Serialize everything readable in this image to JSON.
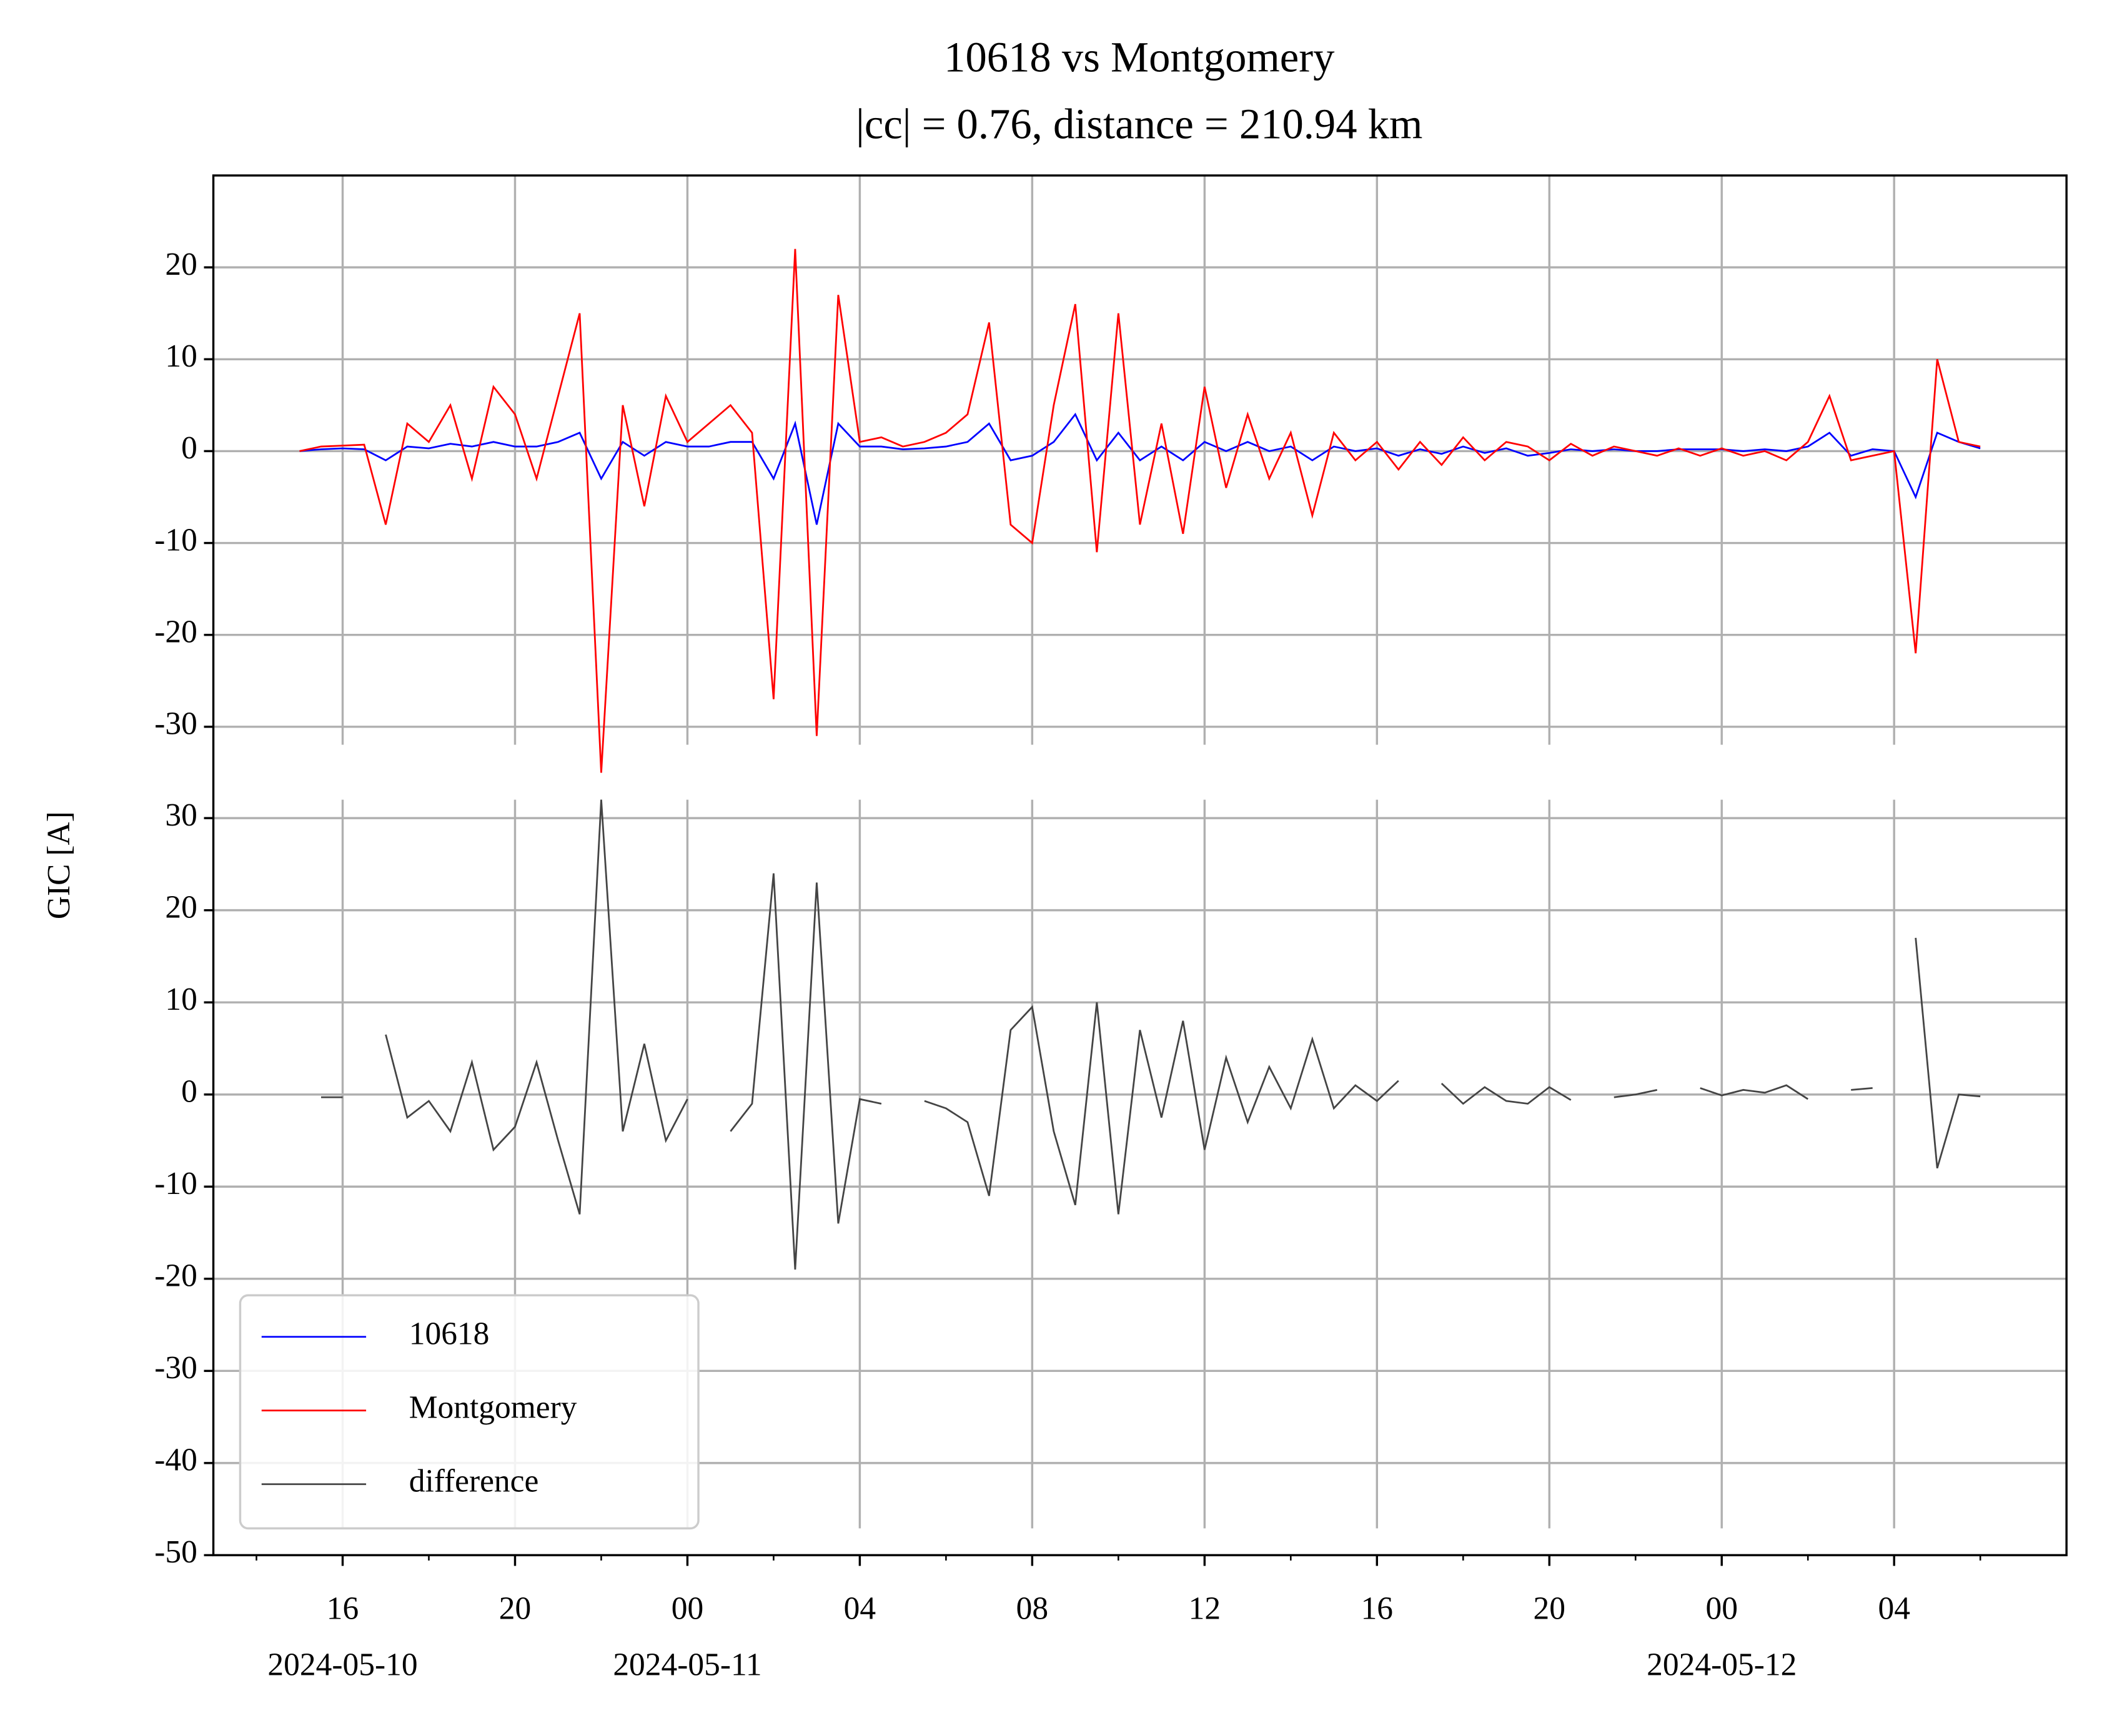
{
  "chart_data": [
    {
      "type": "line",
      "title": "10618 vs Montgomery",
      "subtitle": "|cc| = 0.76, distance = 210.94 km",
      "x": [
        "2024-05-10 15:00",
        "2024-05-10 15:30",
        "2024-05-10 16:00",
        "2024-05-10 16:30",
        "2024-05-10 17:00",
        "2024-05-10 17:30",
        "2024-05-10 18:00",
        "2024-05-10 18:30",
        "2024-05-10 19:00",
        "2024-05-10 19:30",
        "2024-05-10 20:00",
        "2024-05-10 20:30",
        "2024-05-10 21:00",
        "2024-05-10 21:30",
        "2024-05-10 22:00",
        "2024-05-10 22:30",
        "2024-05-10 23:00",
        "2024-05-10 23:30",
        "2024-05-11 00:00",
        "2024-05-11 00:30",
        "2024-05-11 01:00",
        "2024-05-11 01:30",
        "2024-05-11 02:00",
        "2024-05-11 02:30",
        "2024-05-11 03:00",
        "2024-05-11 03:30",
        "2024-05-11 04:00",
        "2024-05-11 04:30",
        "2024-05-11 05:00",
        "2024-05-11 05:30",
        "2024-05-11 06:00",
        "2024-05-11 06:30",
        "2024-05-11 07:00",
        "2024-05-11 07:30",
        "2024-05-11 08:00",
        "2024-05-11 08:30",
        "2024-05-11 09:00",
        "2024-05-11 09:30",
        "2024-05-11 10:00",
        "2024-05-11 10:30",
        "2024-05-11 11:00",
        "2024-05-11 11:30",
        "2024-05-11 12:00",
        "2024-05-11 12:30",
        "2024-05-11 13:00",
        "2024-05-11 13:30",
        "2024-05-11 14:00",
        "2024-05-11 14:30",
        "2024-05-11 15:00",
        "2024-05-11 15:30",
        "2024-05-11 16:00",
        "2024-05-11 16:30",
        "2024-05-11 17:00",
        "2024-05-11 17:30",
        "2024-05-11 18:00",
        "2024-05-11 18:30",
        "2024-05-11 19:00",
        "2024-05-11 19:30",
        "2024-05-11 20:00",
        "2024-05-11 20:30",
        "2024-05-11 21:00",
        "2024-05-11 21:30",
        "2024-05-11 22:00",
        "2024-05-11 22:30",
        "2024-05-11 23:00",
        "2024-05-11 23:30",
        "2024-05-12 00:00",
        "2024-05-12 00:30",
        "2024-05-12 01:00",
        "2024-05-12 01:30",
        "2024-05-12 02:00",
        "2024-05-12 02:30",
        "2024-05-12 03:00",
        "2024-05-12 03:30",
        "2024-05-12 04:00",
        "2024-05-12 04:30",
        "2024-05-12 05:00",
        "2024-05-12 05:30",
        "2024-05-12 06:00"
      ],
      "series": [
        {
          "name": "10618",
          "color": "#0000ff",
          "values": [
            0,
            0.2,
            0.3,
            0.2,
            -1,
            0.5,
            0.3,
            0.8,
            0.5,
            1,
            0.5,
            0.5,
            1,
            2,
            -3,
            1,
            -0.5,
            1,
            0.5,
            0.5,
            1,
            1,
            -3,
            3,
            -8,
            3,
            0.5,
            0.5,
            0.2,
            0.3,
            0.5,
            1,
            3,
            -1,
            -0.5,
            1,
            4,
            -1,
            2,
            -1,
            0.5,
            -1,
            1,
            0,
            1,
            0,
            0.5,
            -1,
            0.5,
            0,
            0.3,
            -0.5,
            0.2,
            -0.3,
            0.5,
            -0.2,
            0.3,
            -0.5,
            -0.2,
            0.2,
            0,
            0.2,
            0,
            0,
            0.2,
            0.2,
            0.2,
            0,
            0.2,
            0,
            0.5,
            2,
            -0.5,
            0.2,
            0,
            -5,
            2,
            1,
            0.3
          ]
        },
        {
          "name": "Montgomery",
          "color": "#ff0000",
          "values": [
            0,
            0.5,
            0.6,
            0.7,
            -8,
            3,
            1,
            5,
            -3,
            7,
            4,
            -3,
            6,
            15,
            -35,
            5,
            -6,
            6,
            1,
            3,
            5,
            2,
            -27,
            22,
            -31,
            17,
            1,
            1.5,
            0.5,
            1,
            2,
            4,
            14,
            -8,
            -10,
            5,
            16,
            -11,
            15,
            -8,
            3,
            -9,
            7,
            -4,
            4,
            -3,
            2,
            -7,
            2,
            -1,
            1,
            -2,
            1,
            -1.5,
            1.5,
            -1,
            1,
            0.5,
            -1,
            0.8,
            -0.5,
            0.5,
            0,
            -0.5,
            0.3,
            -0.5,
            0.3,
            -0.5,
            0,
            -1,
            1,
            6,
            -1,
            -0.5,
            0,
            -22,
            10,
            1,
            0.5
          ]
        }
      ],
      "xlim": [
        "2024-05-10 13:00",
        "2024-05-12 08:00"
      ],
      "ylim": [
        -34,
        30
      ],
      "yticks": [
        -30,
        -20,
        -10,
        0,
        10,
        20
      ],
      "grid": true
    },
    {
      "type": "line",
      "ylabel": "GIC [A]",
      "x": [
        "2024-05-10 15:00",
        "2024-05-10 15:30",
        "2024-05-10 16:00",
        "2024-05-10 16:30",
        "2024-05-10 17:00",
        "2024-05-10 17:30",
        "2024-05-10 18:00",
        "2024-05-10 18:30",
        "2024-05-10 19:00",
        "2024-05-10 19:30",
        "2024-05-10 20:00",
        "2024-05-10 20:30",
        "2024-05-10 21:00",
        "2024-05-10 21:30",
        "2024-05-10 22:00",
        "2024-05-10 22:30",
        "2024-05-10 23:00",
        "2024-05-10 23:30",
        "2024-05-11 00:00",
        "2024-05-11 00:30",
        "2024-05-11 01:00",
        "2024-05-11 01:30",
        "2024-05-11 02:00",
        "2024-05-11 02:30",
        "2024-05-11 03:00",
        "2024-05-11 03:30",
        "2024-05-11 04:00",
        "2024-05-11 04:30",
        "2024-05-11 05:00",
        "2024-05-11 05:30",
        "2024-05-11 06:00",
        "2024-05-11 06:30",
        "2024-05-11 07:00",
        "2024-05-11 07:30",
        "2024-05-11 08:00",
        "2024-05-11 08:30",
        "2024-05-11 09:00",
        "2024-05-11 09:30",
        "2024-05-11 10:00",
        "2024-05-11 10:30",
        "2024-05-11 11:00",
        "2024-05-11 11:30",
        "2024-05-11 12:00",
        "2024-05-11 12:30",
        "2024-05-11 13:00",
        "2024-05-11 13:30",
        "2024-05-11 14:00",
        "2024-05-11 14:30",
        "2024-05-11 15:00",
        "2024-05-11 15:30",
        "2024-05-11 16:00",
        "2024-05-11 16:30",
        "2024-05-11 17:00",
        "2024-05-11 17:30",
        "2024-05-11 18:00",
        "2024-05-11 18:30",
        "2024-05-11 19:00",
        "2024-05-11 19:30",
        "2024-05-11 20:00",
        "2024-05-11 20:30",
        "2024-05-11 21:00",
        "2024-05-11 21:30",
        "2024-05-11 22:00",
        "2024-05-11 22:30",
        "2024-05-11 23:00",
        "2024-05-11 23:30",
        "2024-05-12 00:00",
        "2024-05-12 00:30",
        "2024-05-12 01:00",
        "2024-05-12 01:30",
        "2024-05-12 02:00",
        "2024-05-12 02:30",
        "2024-05-12 03:00",
        "2024-05-12 03:30",
        "2024-05-12 04:00",
        "2024-05-12 04:30",
        "2024-05-12 05:00",
        "2024-05-12 05:30",
        "2024-05-12 06:00"
      ],
      "series": [
        {
          "name": "difference",
          "color": "#444444",
          "values": [
            null,
            -0.3,
            -0.3,
            null,
            6.5,
            -2.5,
            -0.7,
            -4,
            3.5,
            -6,
            -3.5,
            3.5,
            -5,
            -13,
            32,
            -4,
            5.5,
            -5,
            -0.5,
            null,
            -4,
            -1,
            24,
            -19,
            23,
            -14,
            -0.5,
            -1,
            null,
            -0.7,
            -1.5,
            -3,
            -11,
            7,
            9.5,
            -4,
            -12,
            10,
            -13,
            7,
            -2.5,
            8,
            -6,
            4,
            -3,
            3,
            -1.5,
            6,
            -1.5,
            1,
            -0.7,
            1.5,
            null,
            1.2,
            -1,
            0.8,
            -0.7,
            -1,
            0.8,
            -0.6,
            null,
            -0.3,
            0,
            0.5,
            null,
            0.7,
            -0.1,
            0.5,
            0.2,
            1,
            -0.5,
            null,
            0.5,
            0.7,
            null,
            17,
            -8,
            0,
            -0.2
          ]
        }
      ],
      "xlim": [
        "2024-05-10 13:00",
        "2024-05-12 08:00"
      ],
      "ylim": [
        -50,
        32
      ],
      "yticks": [
        -50,
        -40,
        -30,
        -20,
        -10,
        0,
        10,
        20,
        30
      ],
      "xticks": [
        {
          "value": "2024-05-10 16:00",
          "label": "16"
        },
        {
          "value": "2024-05-10 20:00",
          "label": "20"
        },
        {
          "value": "2024-05-11 00:00",
          "label": "00"
        },
        {
          "value": "2024-05-11 04:00",
          "label": "04"
        },
        {
          "value": "2024-05-11 08:00",
          "label": "08"
        },
        {
          "value": "2024-05-11 12:00",
          "label": "12"
        },
        {
          "value": "2024-05-11 16:00",
          "label": "16"
        },
        {
          "value": "2024-05-11 20:00",
          "label": "20"
        },
        {
          "value": "2024-05-12 00:00",
          "label": "00"
        },
        {
          "value": "2024-05-12 04:00",
          "label": "04"
        }
      ],
      "xtick_dates": [
        {
          "value": "2024-05-10 16:00",
          "label": "2024-05-10"
        },
        {
          "value": "2024-05-11 00:00",
          "label": "2024-05-11"
        },
        {
          "value": "2024-05-12 00:00",
          "label": "2024-05-12"
        }
      ],
      "xminorticks": [
        "2024-05-10 14:00",
        "2024-05-10 18:00",
        "2024-05-10 22:00",
        "2024-05-11 02:00",
        "2024-05-11 06:00",
        "2024-05-11 10:00",
        "2024-05-11 14:00",
        "2024-05-11 18:00",
        "2024-05-11 22:00",
        "2024-05-12 02:00",
        "2024-05-12 06:00"
      ],
      "grid": true,
      "legend": "lower left"
    }
  ]
}
